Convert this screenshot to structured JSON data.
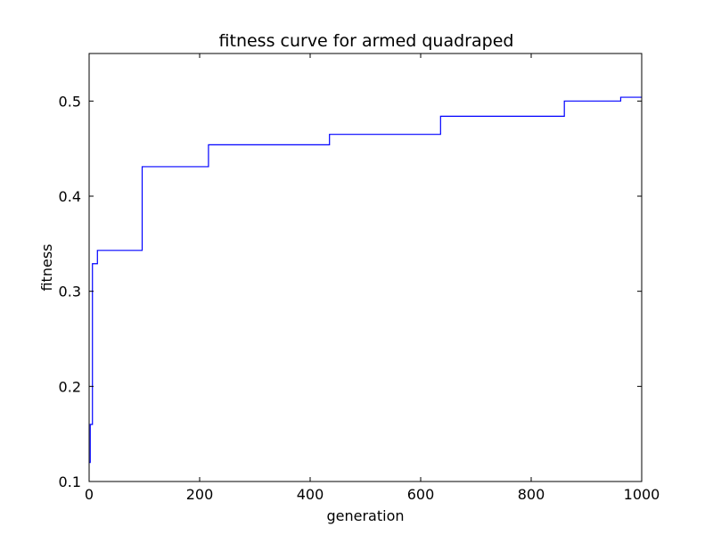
{
  "chart_data": {
    "type": "line",
    "title": "fitness curve for armed quadraped",
    "xlabel": "generation",
    "ylabel": "fitness",
    "xlim": [
      0,
      1000
    ],
    "ylim": [
      0.1,
      0.55
    ],
    "xticks": [
      0,
      200,
      400,
      600,
      800,
      1000
    ],
    "xtick_labels": [
      "0",
      "200",
      "400",
      "600",
      "800",
      "1000"
    ],
    "yticks": [
      0.1,
      0.2,
      0.3,
      0.4,
      0.5
    ],
    "ytick_labels": [
      "0.1",
      "0.2",
      "0.3",
      "0.4",
      "0.5"
    ],
    "grid": false,
    "series": [
      {
        "color": "#0000ff",
        "step": true,
        "x": [
          0,
          2,
          6,
          10,
          15,
          96,
          216,
          435,
          636,
          860,
          962,
          1000
        ],
        "y": [
          0.12,
          0.16,
          0.329,
          0.329,
          0.343,
          0.431,
          0.454,
          0.465,
          0.484,
          0.5,
          0.504,
          0.504
        ]
      }
    ]
  }
}
